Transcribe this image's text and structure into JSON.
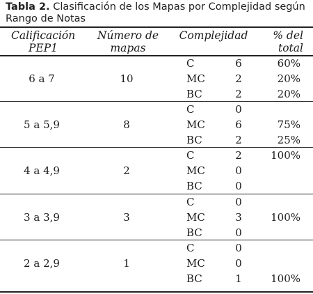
{
  "caption": {
    "label": "Tabla 2.",
    "text": "Clasificación de los Mapas por Complejidad según Rango de Notas"
  },
  "headers": {
    "calificacion": "Calificación PEP1",
    "numero": "Número de mapas",
    "complejidad": "Complejidad",
    "total": "% del total"
  },
  "groups": [
    {
      "calificacion": "6 a 7",
      "numero": "10",
      "rows": [
        {
          "code": "C",
          "count": "6",
          "pct": "60%"
        },
        {
          "code": "MC",
          "count": "2",
          "pct": "20%"
        },
        {
          "code": "BC",
          "count": "2",
          "pct": "20%"
        }
      ]
    },
    {
      "calificacion": "5 a 5,9",
      "numero": "8",
      "rows": [
        {
          "code": "C",
          "count": "0",
          "pct": ""
        },
        {
          "code": "MC",
          "count": "6",
          "pct": "75%"
        },
        {
          "code": "BC",
          "count": "2",
          "pct": "25%"
        }
      ]
    },
    {
      "calificacion": "4 a 4,9",
      "numero": "2",
      "rows": [
        {
          "code": "C",
          "count": "2",
          "pct": "100%"
        },
        {
          "code": "MC",
          "count": "0",
          "pct": ""
        },
        {
          "code": "BC",
          "count": "0",
          "pct": ""
        }
      ]
    },
    {
      "calificacion": "3 a 3,9",
      "numero": "3",
      "rows": [
        {
          "code": "C",
          "count": "0",
          "pct": ""
        },
        {
          "code": "MC",
          "count": "3",
          "pct": "100%"
        },
        {
          "code": "BC",
          "count": "0",
          "pct": ""
        }
      ]
    },
    {
      "calificacion": "2 a 2,9",
      "numero": "1",
      "rows": [
        {
          "code": "C",
          "count": "0",
          "pct": ""
        },
        {
          "code": "MC",
          "count": "0",
          "pct": ""
        },
        {
          "code": "BC",
          "count": "1",
          "pct": "100%"
        }
      ]
    }
  ]
}
